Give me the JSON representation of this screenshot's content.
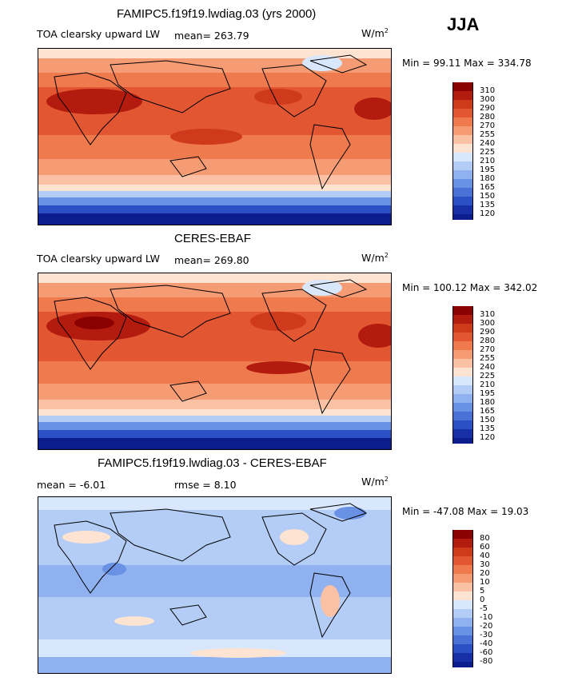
{
  "season": "JJA",
  "panels": [
    {
      "title": "FAMIPC5.f19f19.lwdiag.03 (yrs 2000)",
      "variable": "TOA clearsky upward LW",
      "stat1": "mean= 263.79",
      "stat2": "",
      "units_base": "W/m",
      "units_exp": "2",
      "minmax": "Min =  99.11 Max = 334.78",
      "colorbar": {
        "levels": [
          "310",
          "300",
          "290",
          "280",
          "270",
          "255",
          "240",
          "225",
          "210",
          "195",
          "180",
          "165",
          "150",
          "135",
          "120"
        ],
        "colors": [
          "#8b0000",
          "#b31b0f",
          "#cf3a1d",
          "#e25631",
          "#ef7a4d",
          "#f69c74",
          "#fbc1a4",
          "#fde3d2",
          "#d8e7fb",
          "#b3cdf6",
          "#8fb1ef",
          "#6a92e4",
          "#4a72d6",
          "#2b4fc4",
          "#1730a8",
          "#0b1c8c"
        ]
      }
    },
    {
      "title": "CERES-EBAF",
      "variable": "TOA clearsky upward LW",
      "stat1": "mean= 269.80",
      "stat2": "",
      "units_base": "W/m",
      "units_exp": "2",
      "minmax": "Min = 100.12 Max = 342.02",
      "colorbar": {
        "levels": [
          "310",
          "300",
          "290",
          "280",
          "270",
          "255",
          "240",
          "225",
          "210",
          "195",
          "180",
          "165",
          "150",
          "135",
          "120"
        ],
        "colors": [
          "#8b0000",
          "#b31b0f",
          "#cf3a1d",
          "#e25631",
          "#ef7a4d",
          "#f69c74",
          "#fbc1a4",
          "#fde3d2",
          "#d8e7fb",
          "#b3cdf6",
          "#8fb1ef",
          "#6a92e4",
          "#4a72d6",
          "#2b4fc4",
          "#1730a8",
          "#0b1c8c"
        ]
      }
    },
    {
      "title": "FAMIPC5.f19f19.lwdiag.03 - CERES-EBAF",
      "variable": "",
      "stat1": "mean =   -6.01",
      "stat2": "rmse =    8.10",
      "units_base": "W/m",
      "units_exp": "2",
      "minmax": "Min = -47.08 Max =  19.03",
      "colorbar": {
        "levels": [
          "80",
          "60",
          "40",
          "30",
          "20",
          "10",
          "5",
          "0",
          "-5",
          "-10",
          "-20",
          "-30",
          "-40",
          "-60",
          "-80"
        ],
        "colors": [
          "#8b0000",
          "#b31b0f",
          "#cf3a1d",
          "#e25631",
          "#ef7a4d",
          "#f69c74",
          "#fbc1a4",
          "#fde3d2",
          "#d8e7fb",
          "#b3cdf6",
          "#8fb1ef",
          "#6a92e4",
          "#4a72d6",
          "#2b4fc4",
          "#1730a8",
          "#0b1c8c"
        ]
      }
    }
  ]
}
